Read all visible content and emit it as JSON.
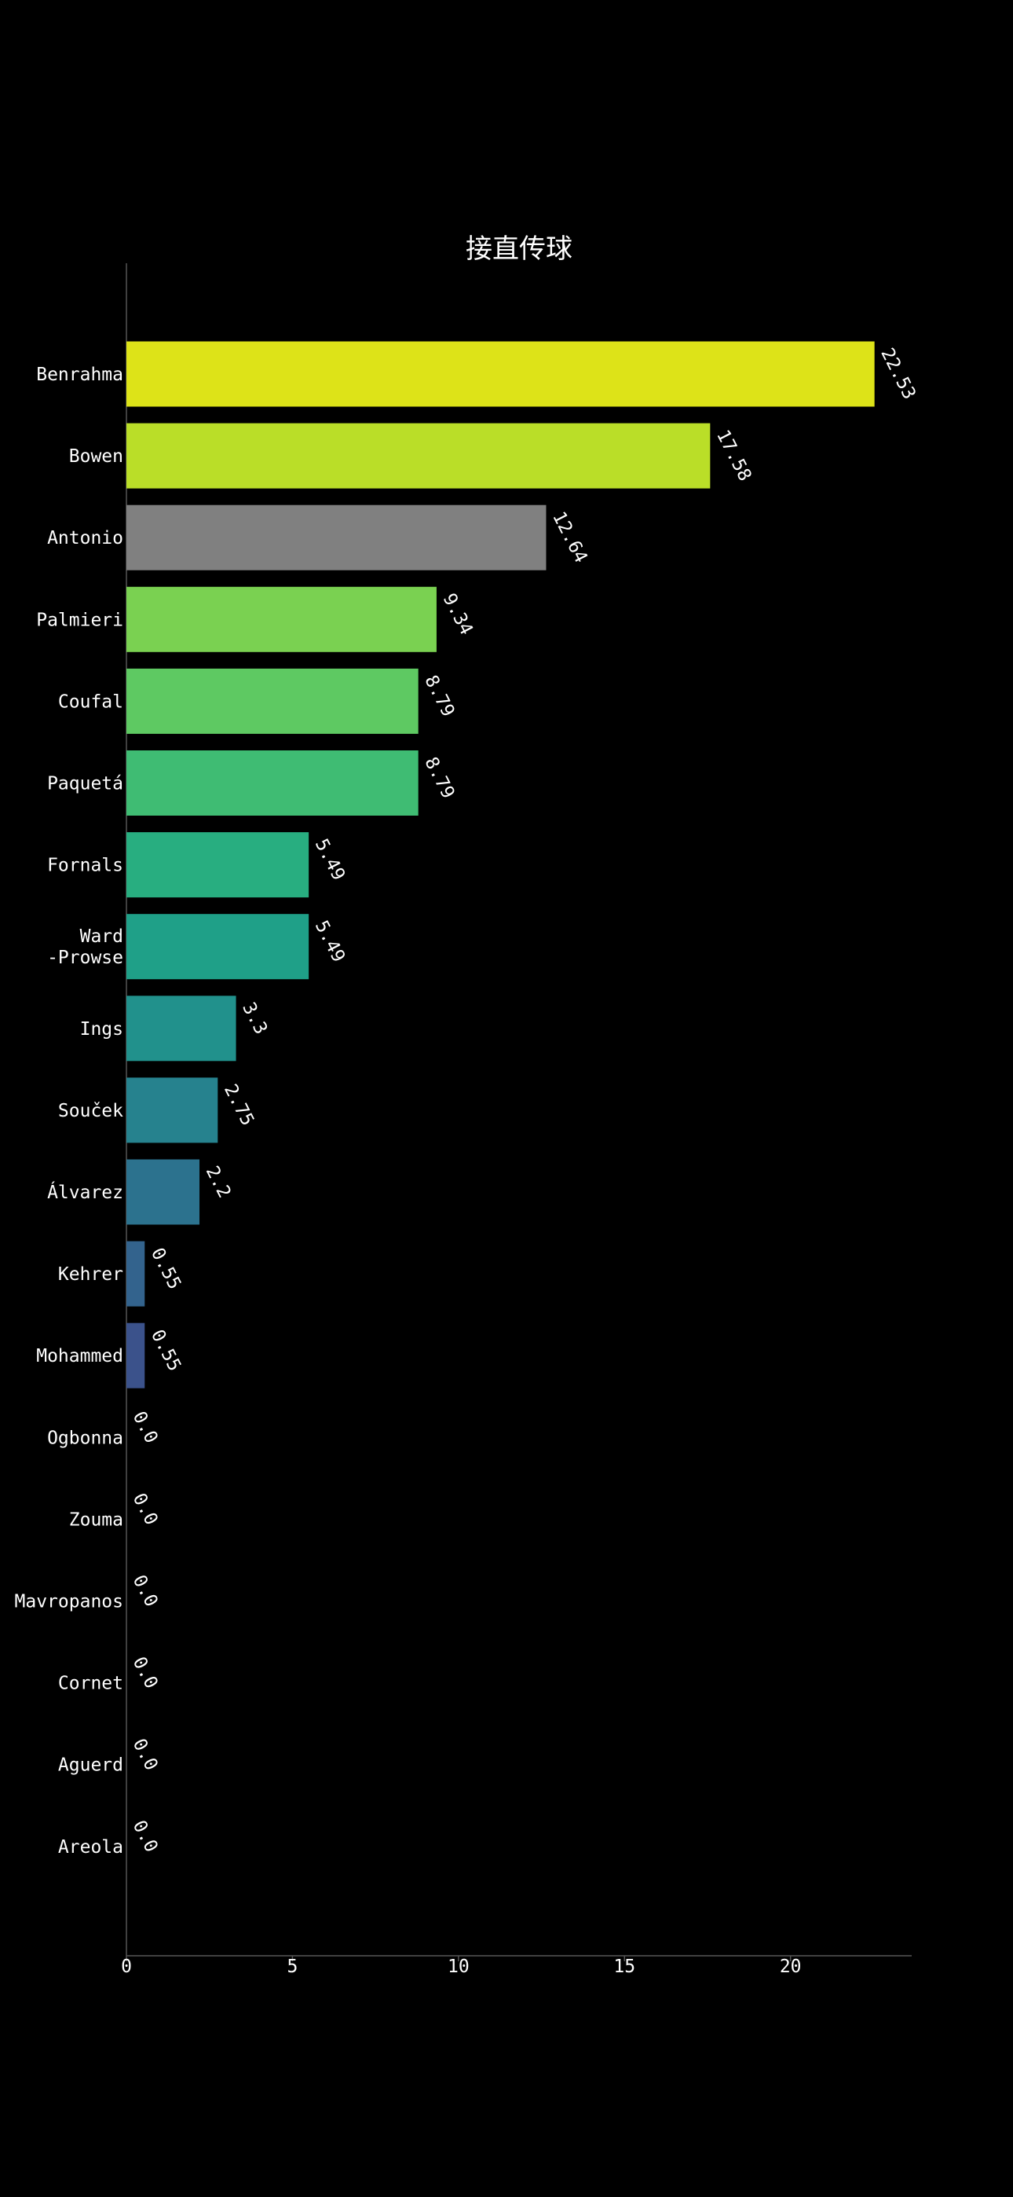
{
  "chart_data": {
    "type": "bar",
    "orientation": "horizontal",
    "title": "接直传球",
    "xlabel": "",
    "ylabel": "",
    "xlim": [
      0,
      23.65
    ],
    "xticks": [
      0,
      5,
      10,
      15,
      20
    ],
    "grid": false,
    "categories": [
      "Benrahma",
      "Bowen",
      "Antonio",
      "Palmieri",
      "Coufal",
      "Paquetá",
      "Fornals",
      "Ward\n-Prowse",
      "Ings",
      "Souček",
      "Álvarez",
      "Kehrer",
      "Mohammed",
      "Ogbonna",
      "Zouma",
      "Mavropanos",
      "Cornet",
      "Aguerd",
      "Areola"
    ],
    "values": [
      22.53,
      17.58,
      12.64,
      9.34,
      8.79,
      8.79,
      5.49,
      5.49,
      3.3,
      2.75,
      2.2,
      0.55,
      0.55,
      0.0,
      0.0,
      0.0,
      0.0,
      0.0,
      0.0
    ],
    "value_labels": [
      "22.53",
      "17.58",
      "12.64",
      "9.34",
      "8.79",
      "8.79",
      "5.49",
      "5.49",
      "3.3",
      "2.75",
      "2.2",
      "0.55",
      "0.55",
      "0.0",
      "0.0",
      "0.0",
      "0.0",
      "0.0",
      "0.0"
    ],
    "colors": [
      "#dde318",
      "#bade28",
      "#808080",
      "#7ad151",
      "#5ec962",
      "#3fbc73",
      "#28ae80",
      "#1fa088",
      "#21918c",
      "#26828e",
      "#2c728e",
      "#33638d",
      "#3b528b",
      "#424086",
      "#472d7b",
      "#48186a",
      "#440154",
      "#440154",
      "#440154"
    ]
  }
}
